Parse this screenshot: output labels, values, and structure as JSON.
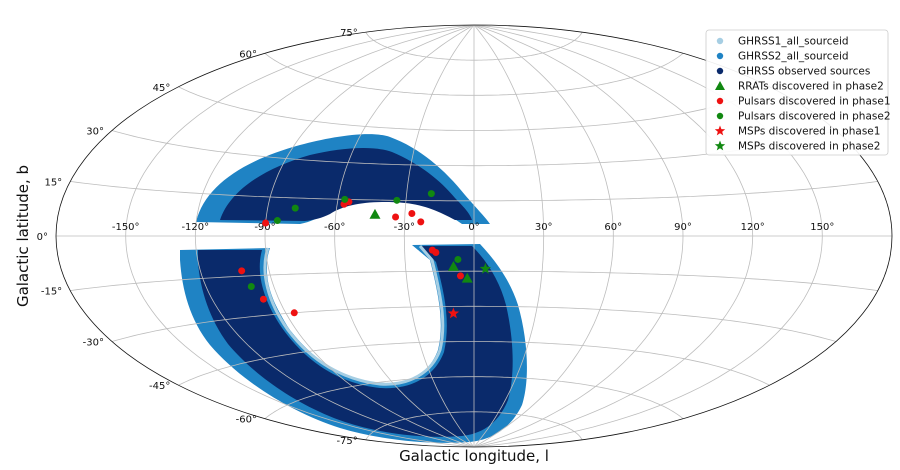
{
  "chart_data": {
    "type": "scatter",
    "projection": "aitoff",
    "title": "",
    "xlabel": "Galactic longitude, l",
    "ylabel": "Galactic latitude, b",
    "x_ticks": [
      "-150°",
      "-120°",
      "-90°",
      "-60°",
      "-30°",
      "0°",
      "30°",
      "60°",
      "90°",
      "120°",
      "150°"
    ],
    "y_ticks": [
      "75°",
      "60°",
      "45°",
      "30°",
      "15°",
      "0°",
      "-15°",
      "-30°",
      "-45°",
      "-60°",
      "-75°"
    ],
    "xlim": [
      -180,
      180
    ],
    "ylim": [
      -90,
      90
    ],
    "grid": true,
    "legend_position": "top-right",
    "colors": {
      "ghrss1": "#a6cee3",
      "ghrss2": "#1f83c4",
      "observed": "#0a2a6b",
      "rrat": "#118811",
      "pulsar1": "#ee1111",
      "pulsar2": "#118811",
      "msp1": "#ee1111",
      "msp2": "#118811"
    },
    "legend": [
      {
        "label": "GHRSS1_all_sourceid",
        "marker": "circle",
        "color_key": "ghrss1"
      },
      {
        "label": "GHRSS2_all_sourceid",
        "marker": "circle",
        "color_key": "ghrss2"
      },
      {
        "label": "GHRSS observed sources",
        "marker": "circle",
        "color_key": "observed"
      },
      {
        "label": "RRATs discovered in phase2",
        "marker": "triangle",
        "color_key": "rrat"
      },
      {
        "label": "Pulsars discovered in phase1",
        "marker": "circle",
        "color_key": "pulsar1"
      },
      {
        "label": "Pulsars discovered in phase2",
        "marker": "circle",
        "color_key": "pulsar2"
      },
      {
        "label": "MSPs discovered in phase1",
        "marker": "star",
        "color_key": "msp1"
      },
      {
        "label": "MSPs discovered in phase2",
        "marker": "star",
        "color_key": "msp2"
      }
    ],
    "series": [
      {
        "name": "RRATs discovered in phase2",
        "marker": "triangle",
        "color_key": "rrat",
        "points": [
          [
            -43,
            9
          ],
          [
            -9,
            -13
          ],
          [
            -3,
            -18
          ]
        ]
      },
      {
        "name": "Pulsars discovered in phase1",
        "marker": "circle",
        "color_key": "pulsar1",
        "points": [
          [
            -90,
            5
          ],
          [
            -55,
            14
          ],
          [
            -57,
            13
          ],
          [
            -34,
            8
          ],
          [
            -27,
            9.5
          ],
          [
            -23,
            6
          ],
          [
            -18,
            -6
          ],
          [
            -16.5,
            -7
          ],
          [
            -102,
            -13
          ],
          [
            -6,
            -17
          ],
          [
            -97,
            -24
          ],
          [
            -86,
            -30
          ]
        ]
      },
      {
        "name": "Pulsars discovered in phase2",
        "marker": "circle",
        "color_key": "pulsar2",
        "points": [
          [
            -85,
            6
          ],
          [
            -78,
            11
          ],
          [
            -57,
            15
          ],
          [
            -34,
            15
          ],
          [
            -19,
            18
          ],
          [
            -7,
            -10
          ],
          [
            -100,
            -19
          ]
        ]
      },
      {
        "name": "MSPs discovered in phase1",
        "marker": "star",
        "color_key": "msp1",
        "points": [
          [
            -10,
            -33
          ]
        ]
      },
      {
        "name": "MSPs discovered in phase2",
        "marker": "star",
        "color_key": "msp2",
        "points": [
          [
            5,
            -14
          ]
        ]
      }
    ],
    "survey_regions": [
      {
        "name": "GHRSS1_all_sourceid",
        "color_key": "ghrss1",
        "l_range": [
          -150,
          10
        ],
        "b_range": [
          -85,
          30
        ],
        "note": "thin border of survey footprint"
      },
      {
        "name": "GHRSS2_all_sourceid",
        "color_key": "ghrss2",
        "l_range": [
          -150,
          10
        ],
        "b_range": [
          -85,
          30
        ]
      },
      {
        "name": "GHRSS observed sources",
        "color_key": "observed",
        "l_range": [
          -140,
          0
        ],
        "b_range": [
          -80,
          27
        ]
      }
    ]
  }
}
